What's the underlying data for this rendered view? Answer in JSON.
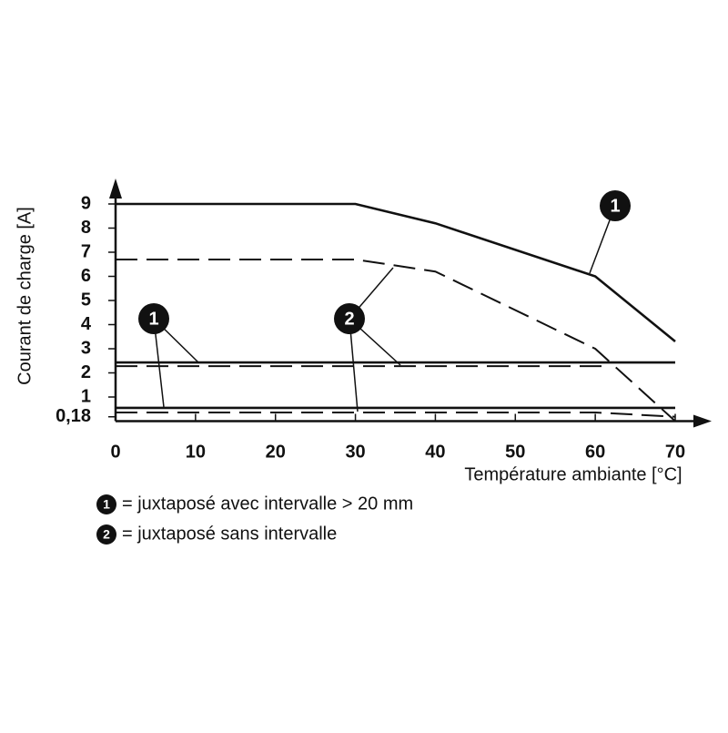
{
  "chart_data": {
    "type": "line",
    "xlabel": "Température ambiante [°C]",
    "ylabel": "Courant de charge [A]",
    "xlim": [
      0,
      70
    ],
    "ylim": [
      0,
      10
    ],
    "xticks": [
      0,
      10,
      20,
      30,
      40,
      50,
      60,
      70
    ],
    "yticks": [
      {
        "value": 0.18,
        "label": "0,18"
      },
      1,
      2,
      3,
      4,
      5,
      6,
      7,
      8,
      9
    ],
    "series": [
      {
        "color": "#111111",
        "style": "solid",
        "x": [
          0,
          30,
          40,
          60,
          70
        ],
        "values": [
          9,
          9,
          8.2,
          6,
          3.3
        ]
      },
      {
        "color": "#111111",
        "style": "dashed",
        "x": [
          0,
          30,
          40,
          60,
          70
        ],
        "values": [
          6.7,
          6.7,
          6.2,
          3,
          0
        ]
      },
      {
        "color": "#111111",
        "style": "solid",
        "x": [
          0,
          70
        ],
        "values": [
          2.43,
          2.43
        ]
      },
      {
        "color": "#111111",
        "style": "dashed",
        "x": [
          0,
          61.5
        ],
        "values": [
          2.28,
          2.28
        ]
      },
      {
        "color": "#111111",
        "style": "solid",
        "x": [
          0,
          70
        ],
        "values": [
          0.55,
          0.55
        ]
      },
      {
        "color": "#111111",
        "style": "dashed",
        "x": [
          0,
          60,
          70
        ],
        "values": [
          0.36,
          0.36,
          0.18
        ]
      }
    ],
    "annotations": [
      "1",
      "1",
      "2"
    ],
    "legend": [
      {
        "marker": "1",
        "text": "= juxtaposé avec intervalle > 20 mm"
      },
      {
        "marker": "2",
        "text": "= juxtaposé sans intervalle"
      }
    ]
  }
}
